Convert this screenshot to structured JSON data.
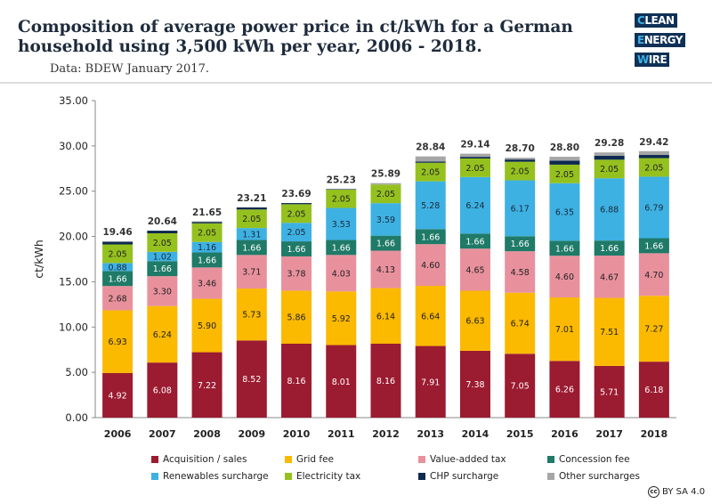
{
  "header": {
    "title": "Composition of average power price in ct/kWh for a German household using 3,500 kWh per year, 2006 - 2018.",
    "subtitle": "Data: BDEW January 2017.",
    "logo_text": "CLEAN ENERGY WIRE"
  },
  "license": {
    "icon": "cc",
    "text": "BY SA 4.0"
  },
  "chart_data": {
    "type": "bar",
    "stacked": true,
    "title": "",
    "xlabel": "",
    "ylabel": "ct/kWh",
    "ylim": [
      0,
      35
    ],
    "yticks": [
      "0.00",
      "5.00",
      "10.00",
      "15.00",
      "20.00",
      "25.00",
      "30.00",
      "35.00"
    ],
    "grid": false,
    "legend_position": "bottom",
    "categories": [
      "2006",
      "2007",
      "2008",
      "2009",
      "2010",
      "2011",
      "2012",
      "2013",
      "2014",
      "2015",
      "2016",
      "2017",
      "2018"
    ],
    "totals": [
      "19.46",
      "20.64",
      "21.65",
      "23.21",
      "23.69",
      "25.23",
      "25.89",
      "28.84",
      "29.14",
      "28.70",
      "28.80",
      "29.28",
      "29.42"
    ],
    "series": [
      {
        "name": "Acquisition / sales",
        "color": "#9b1b30",
        "label_color": "#ffffff",
        "labeled": true,
        "values": [
          4.92,
          6.08,
          7.22,
          8.52,
          8.16,
          8.01,
          8.16,
          7.91,
          7.38,
          7.05,
          6.26,
          5.71,
          6.18
        ]
      },
      {
        "name": "Grid fee",
        "color": "#fbb900",
        "label_color": "#222222",
        "labeled": true,
        "values": [
          6.93,
          6.24,
          5.9,
          5.73,
          5.86,
          5.92,
          6.14,
          6.64,
          6.63,
          6.74,
          7.01,
          7.51,
          7.27
        ]
      },
      {
        "name": "Value-added tax",
        "color": "#e8919d",
        "label_color": "#222222",
        "labeled": true,
        "values": [
          2.68,
          3.3,
          3.46,
          3.71,
          3.78,
          4.03,
          4.13,
          4.6,
          4.65,
          4.58,
          4.6,
          4.67,
          4.7
        ]
      },
      {
        "name": "Concession fee",
        "color": "#1f7a67",
        "label_color": "#ffffff",
        "labeled": true,
        "values": [
          1.66,
          1.66,
          1.66,
          1.66,
          1.66,
          1.66,
          1.66,
          1.66,
          1.66,
          1.66,
          1.66,
          1.66,
          1.66
        ]
      },
      {
        "name": "Renewables surcharge",
        "color": "#3eb1e3",
        "label_color": "#1a2a3a",
        "labeled": true,
        "values": [
          0.88,
          1.02,
          1.16,
          1.31,
          2.05,
          3.53,
          3.59,
          5.28,
          6.24,
          6.17,
          6.35,
          6.88,
          6.79
        ]
      },
      {
        "name": "Electricity tax",
        "color": "#95c11f",
        "label_color": "#222222",
        "labeled": true,
        "values": [
          2.05,
          2.05,
          2.05,
          2.05,
          2.05,
          2.05,
          2.05,
          2.05,
          2.05,
          2.05,
          2.05,
          2.05,
          2.05
        ]
      },
      {
        "name": "CHP surcharge",
        "color": "#0d2a4f",
        "label_color": "#ffffff",
        "labeled": false,
        "values": [
          0.31,
          0.29,
          0.19,
          0.23,
          0.13,
          0.03,
          0.0,
          0.13,
          0.18,
          0.25,
          0.45,
          0.44,
          0.35
        ]
      },
      {
        "name": "Other surcharges",
        "color": "#a6a6a6",
        "label_color": "#222222",
        "labeled": false,
        "values": [
          0.03,
          0.0,
          0.01,
          0.0,
          0.0,
          0.0,
          0.16,
          0.57,
          0.35,
          0.2,
          0.42,
          0.36,
          0.42
        ]
      }
    ]
  }
}
